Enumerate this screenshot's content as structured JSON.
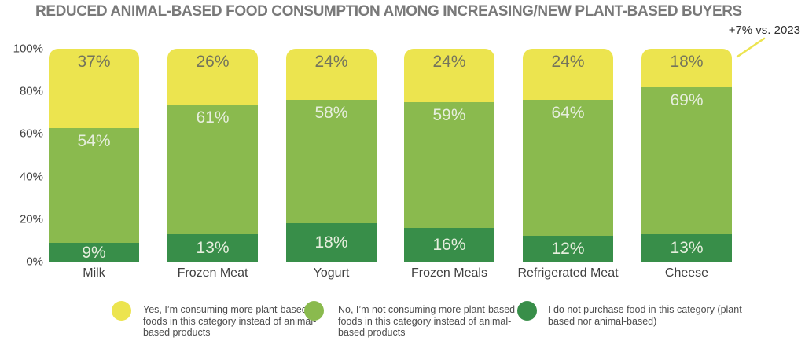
{
  "header": {
    "title": "REDUCED ANIMAL-BASED FOOD CONSUMPTION AMONG INCREASING/NEW PLANT-BASED BUYERS",
    "title_color": "#797979"
  },
  "annotation": {
    "text": "+7% vs. 2023",
    "color": "#2f2f2f",
    "line_color": "#ece44f",
    "points_to": "Cheese"
  },
  "chart_data": {
    "type": "bar",
    "stacked": true,
    "orientation": "vertical",
    "title": "REDUCED ANIMAL-BASED FOOD CONSUMPTION AMONG INCREASING/NEW PLANT-BASED BUYERS",
    "categories": [
      "Milk",
      "Frozen Meat",
      "Yogurt",
      "Frozen Meals",
      "Refrigerated Meat",
      "Cheese"
    ],
    "series": [
      {
        "name": "Yes, I’m consuming more plant-based foods in this category instead of animal-based products",
        "key": "yes-consuming-more-plant-based",
        "color": "#ece44f",
        "label_color": "#74745c",
        "label_position": "top",
        "values": [
          37,
          26,
          24,
          24,
          24,
          18
        ]
      },
      {
        "name": "No, I’m not consuming more plant-based foods in this category instead of animal-based products",
        "key": "no-not-consuming-more-plant-based",
        "color": "#8aba4e",
        "label_color": "#e6eedd",
        "label_position": "top",
        "values": [
          54,
          61,
          58,
          59,
          64,
          69
        ]
      },
      {
        "name": "I do not purchase food in this category (plant-based nor animal-based)",
        "key": "do-not-purchase-category",
        "color": "#388e49",
        "label_color": "#e6eedd",
        "label_position": "center",
        "values": [
          9,
          13,
          18,
          16,
          12,
          13
        ]
      }
    ],
    "value_suffix": "%",
    "yticks": [
      100,
      80,
      60,
      40,
      20,
      0
    ],
    "ytick_suffix": "%",
    "ylim": [
      0,
      100
    ],
    "grid": false,
    "legend_position": "bottom",
    "axis_label_color": "#414141",
    "category_label_color": "#3f3f3f",
    "legend_text_color": "#4c4c4c"
  }
}
